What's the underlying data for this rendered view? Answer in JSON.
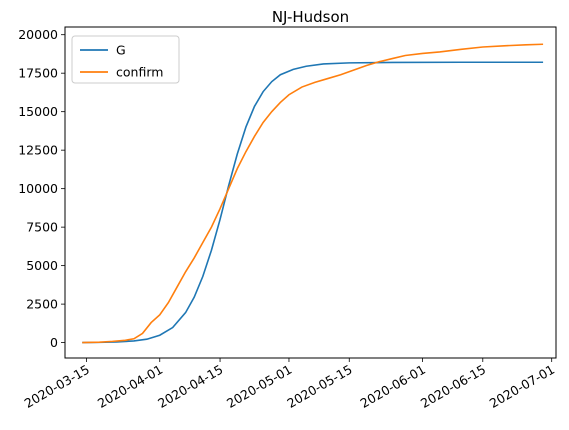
{
  "chart_data": {
    "type": "line",
    "title": "NJ-Hudson",
    "xlabel": "",
    "ylabel": "",
    "x_axis": "date",
    "xlim": [
      "2020-03-10",
      "2020-07-02"
    ],
    "ylim": [
      -1000,
      20500
    ],
    "x_ticks": [
      "2020-03-15",
      "2020-04-01",
      "2020-04-15",
      "2020-05-01",
      "2020-05-15",
      "2020-06-01",
      "2020-06-15",
      "2020-07-01"
    ],
    "y_ticks": [
      0,
      2500,
      5000,
      7500,
      10000,
      12500,
      15000,
      17500,
      20000
    ],
    "y_tick_labels": [
      "0",
      "2500",
      "5000",
      "7500",
      "10000",
      "12500",
      "15000",
      "17500",
      "20000"
    ],
    "grid": false,
    "legend_position": "top-left",
    "series": [
      {
        "name": "G",
        "color": "#1f77b4",
        "points": [
          [
            "2020-03-14",
            5
          ],
          [
            "2020-03-18",
            15
          ],
          [
            "2020-03-22",
            40
          ],
          [
            "2020-03-26",
            110
          ],
          [
            "2020-03-29",
            220
          ],
          [
            "2020-04-01",
            480
          ],
          [
            "2020-04-04",
            980
          ],
          [
            "2020-04-07",
            1950
          ],
          [
            "2020-04-09",
            2950
          ],
          [
            "2020-04-11",
            4300
          ],
          [
            "2020-04-13",
            6000
          ],
          [
            "2020-04-15",
            8000
          ],
          [
            "2020-04-17",
            10200
          ],
          [
            "2020-04-19",
            12250
          ],
          [
            "2020-04-21",
            14000
          ],
          [
            "2020-04-23",
            15350
          ],
          [
            "2020-04-25",
            16300
          ],
          [
            "2020-04-27",
            16950
          ],
          [
            "2020-04-29",
            17400
          ],
          [
            "2020-05-02",
            17750
          ],
          [
            "2020-05-05",
            17950
          ],
          [
            "2020-05-09",
            18100
          ],
          [
            "2020-05-15",
            18170
          ],
          [
            "2020-05-25",
            18200
          ],
          [
            "2020-06-10",
            18210
          ],
          [
            "2020-06-29",
            18210
          ]
        ]
      },
      {
        "name": "confirm",
        "color": "#ff7f0e",
        "points": [
          [
            "2020-03-14",
            5
          ],
          [
            "2020-03-18",
            30
          ],
          [
            "2020-03-21",
            80
          ],
          [
            "2020-03-24",
            150
          ],
          [
            "2020-03-26",
            250
          ],
          [
            "2020-03-28",
            600
          ],
          [
            "2020-03-30",
            1300
          ],
          [
            "2020-04-01",
            1800
          ],
          [
            "2020-04-03",
            2600
          ],
          [
            "2020-04-05",
            3600
          ],
          [
            "2020-04-07",
            4600
          ],
          [
            "2020-04-09",
            5500
          ],
          [
            "2020-04-11",
            6500
          ],
          [
            "2020-04-13",
            7500
          ],
          [
            "2020-04-15",
            8700
          ],
          [
            "2020-04-17",
            10000
          ],
          [
            "2020-04-19",
            11300
          ],
          [
            "2020-04-21",
            12400
          ],
          [
            "2020-04-23",
            13400
          ],
          [
            "2020-04-25",
            14300
          ],
          [
            "2020-04-27",
            15000
          ],
          [
            "2020-04-29",
            15600
          ],
          [
            "2020-05-01",
            16100
          ],
          [
            "2020-05-04",
            16600
          ],
          [
            "2020-05-07",
            16900
          ],
          [
            "2020-05-10",
            17150
          ],
          [
            "2020-05-13",
            17400
          ],
          [
            "2020-05-16",
            17700
          ],
          [
            "2020-05-19",
            18000
          ],
          [
            "2020-05-22",
            18250
          ],
          [
            "2020-05-25",
            18450
          ],
          [
            "2020-05-28",
            18650
          ],
          [
            "2020-06-01",
            18780
          ],
          [
            "2020-06-05",
            18880
          ],
          [
            "2020-06-10",
            19050
          ],
          [
            "2020-06-15",
            19200
          ],
          [
            "2020-06-20",
            19280
          ],
          [
            "2020-06-25",
            19340
          ],
          [
            "2020-06-29",
            19380
          ]
        ]
      }
    ]
  }
}
